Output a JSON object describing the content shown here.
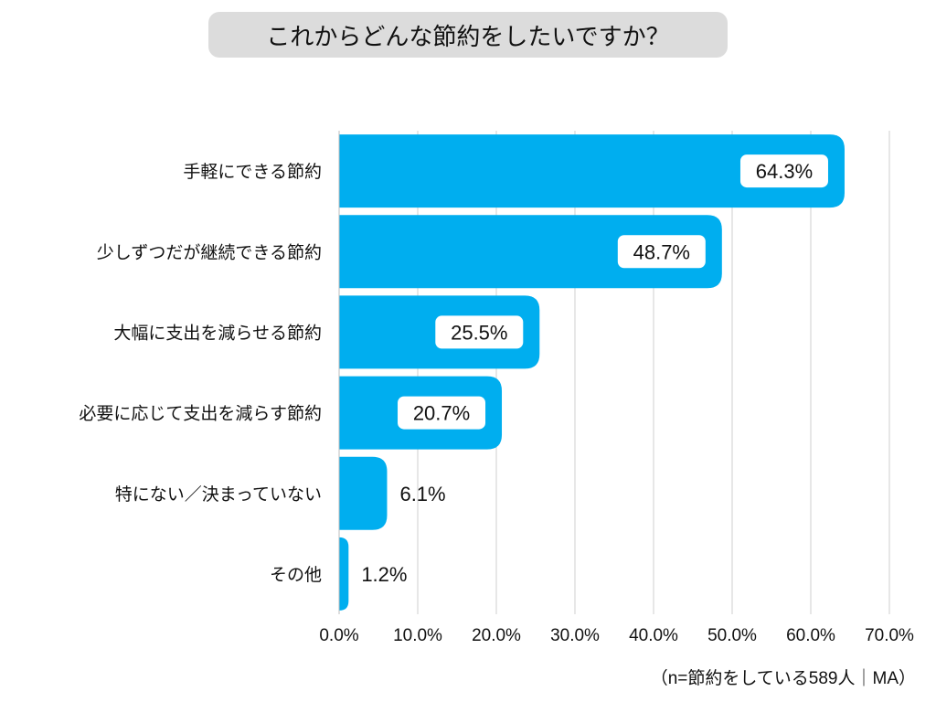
{
  "chart_data": {
    "type": "bar",
    "orientation": "horizontal",
    "title": "これからどんな節約をしたいですか？",
    "categories": [
      "手軽にできる節約",
      "少しずつだが継続できる節約",
      "大幅に支出を減らせる節約",
      "必要に応じて支出を減らす節約",
      "特にない／決まっていない",
      "その他"
    ],
    "values": [
      64.3,
      48.7,
      25.5,
      20.7,
      6.1,
      1.2
    ],
    "value_labels": [
      "64.3%",
      "48.7%",
      "25.5%",
      "20.7%",
      "6.1%",
      "1.2%"
    ],
    "xlim": [
      0,
      70
    ],
    "xticks": [
      0,
      10,
      20,
      30,
      40,
      50,
      60,
      70
    ],
    "xtick_labels": [
      "0.0%",
      "10.0%",
      "20.0%",
      "30.0%",
      "40.0%",
      "50.0%",
      "60.0%",
      "70.0%"
    ],
    "grid": true,
    "bar_color": "#00aeef",
    "grid_color": "#cfcfcf",
    "title_bg_color": "#dcdcdc",
    "note": "（n=節約をしている589人｜MA）"
  }
}
